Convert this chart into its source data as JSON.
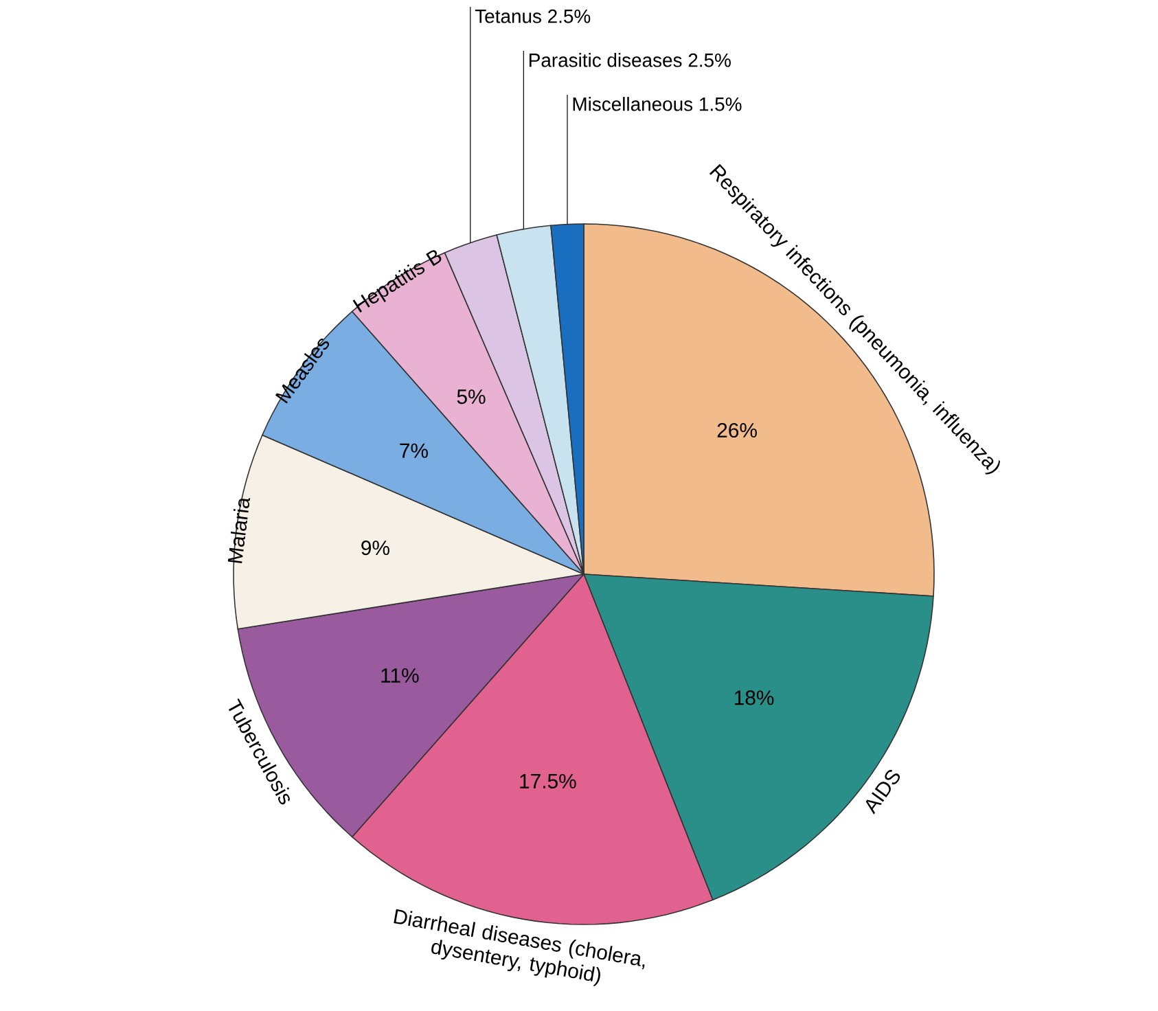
{
  "chart_data": {
    "type": "pie",
    "categories": [
      "Respiratory infections (pneumonia, influenza)",
      "AIDS",
      "Diarrheal diseases (cholera, dysentery, typhoid)",
      "Tuberculosis",
      "Malaria",
      "Measles",
      "Hepatitis B",
      "Tetanus",
      "Parasitic diseases",
      "Miscellaneous"
    ],
    "values": [
      26,
      18,
      17.5,
      11,
      9,
      7,
      5,
      2.5,
      2.5,
      1.5
    ],
    "value_labels": [
      "26%",
      "18%",
      "17.5%",
      "11%",
      "9%",
      "7%",
      "5%",
      "2.5%",
      "2.5%",
      "1.5%"
    ],
    "colors": [
      "#f2bb8c",
      "#2a8f88",
      "#e2628f",
      "#9a5a9e",
      "#f6f0e6",
      "#7aaee2",
      "#eab2d2",
      "#dcc4e4",
      "#c8e2f0",
      "#1a6ec0"
    ]
  }
}
